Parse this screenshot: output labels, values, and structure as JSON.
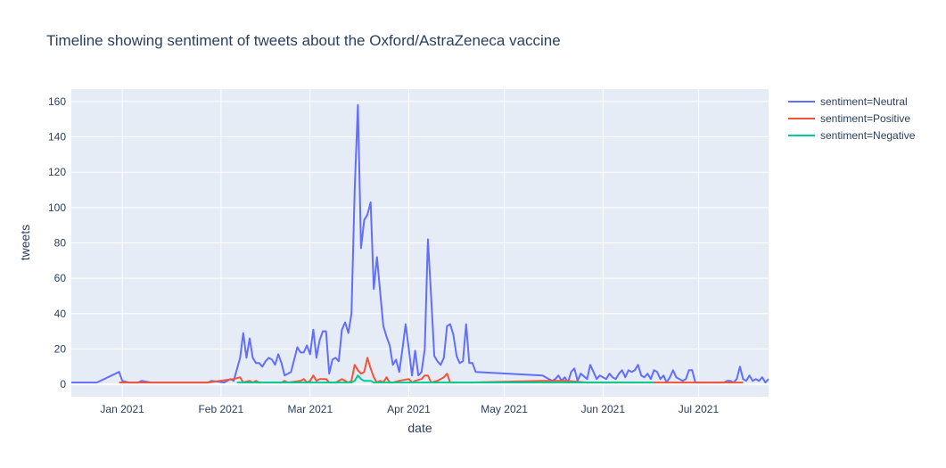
{
  "chart_data": {
    "type": "line",
    "title": "Timeline showing sentiment of tweets about the Oxford/AstraZeneca vaccine",
    "xlabel": "date",
    "ylabel": "tweets",
    "xlim": [
      "2020-12-16",
      "2021-07-23"
    ],
    "ylim": [
      -7,
      167
    ],
    "yticks": [
      0,
      20,
      40,
      60,
      80,
      100,
      120,
      140,
      160
    ],
    "xticks": [
      {
        "date": "2021-01-01",
        "label": "Jan 2021"
      },
      {
        "date": "2021-02-01",
        "label": "Feb 2021"
      },
      {
        "date": "2021-03-01",
        "label": "Mar 2021"
      },
      {
        "date": "2021-04-01",
        "label": "Apr 2021"
      },
      {
        "date": "2021-05-01",
        "label": "May 2021"
      },
      {
        "date": "2021-06-01",
        "label": "Jun 2021"
      },
      {
        "date": "2021-07-01",
        "label": "Jul 2021"
      }
    ],
    "grid": true,
    "legend": "right",
    "colors": {
      "plot_bg": "#E5ECF6",
      "grid": "#ffffff",
      "text": "#2a3f5f",
      "neutral": "#636efa",
      "positive": "#EF553B",
      "negative": "#00cc96"
    },
    "series": [
      {
        "name": "sentiment=Neutral",
        "color": "#636efa",
        "points": [
          [
            "2020-12-16",
            1
          ],
          [
            "2020-12-24",
            1
          ],
          [
            "2020-12-31",
            7
          ],
          [
            "2021-01-01",
            2
          ],
          [
            "2021-01-03",
            1
          ],
          [
            "2021-01-06",
            1
          ],
          [
            "2021-01-07",
            2
          ],
          [
            "2021-01-10",
            1
          ],
          [
            "2021-01-15",
            1
          ],
          [
            "2021-01-20",
            1
          ],
          [
            "2021-01-24",
            1
          ],
          [
            "2021-01-28",
            1
          ],
          [
            "2021-01-29",
            2
          ],
          [
            "2021-02-02",
            1
          ],
          [
            "2021-02-04",
            3
          ],
          [
            "2021-02-05",
            2
          ],
          [
            "2021-02-07",
            15
          ],
          [
            "2021-02-08",
            29
          ],
          [
            "2021-02-09",
            15
          ],
          [
            "2021-02-10",
            26
          ],
          [
            "2021-02-11",
            15
          ],
          [
            "2021-02-12",
            12
          ],
          [
            "2021-02-13",
            12
          ],
          [
            "2021-02-14",
            10
          ],
          [
            "2021-02-15",
            13
          ],
          [
            "2021-02-16",
            15
          ],
          [
            "2021-02-17",
            14
          ],
          [
            "2021-02-18",
            11
          ],
          [
            "2021-02-19",
            17
          ],
          [
            "2021-02-20",
            12
          ],
          [
            "2021-02-21",
            5
          ],
          [
            "2021-02-23",
            7
          ],
          [
            "2021-02-25",
            21
          ],
          [
            "2021-02-26",
            18
          ],
          [
            "2021-02-27",
            18
          ],
          [
            "2021-02-28",
            22
          ],
          [
            "2021-03-01",
            17
          ],
          [
            "2021-03-02",
            31
          ],
          [
            "2021-03-03",
            15
          ],
          [
            "2021-03-04",
            25
          ],
          [
            "2021-03-05",
            30
          ],
          [
            "2021-03-06",
            30
          ],
          [
            "2021-03-07",
            6
          ],
          [
            "2021-03-08",
            14
          ],
          [
            "2021-03-09",
            15
          ],
          [
            "2021-03-10",
            13
          ],
          [
            "2021-03-11",
            31
          ],
          [
            "2021-03-12",
            35
          ],
          [
            "2021-03-13",
            29
          ],
          [
            "2021-03-14",
            40
          ],
          [
            "2021-03-15",
            110
          ],
          [
            "2021-03-16",
            158
          ],
          [
            "2021-03-17",
            77
          ],
          [
            "2021-03-18",
            93
          ],
          [
            "2021-03-19",
            96
          ],
          [
            "2021-03-20",
            103
          ],
          [
            "2021-03-21",
            54
          ],
          [
            "2021-03-22",
            72
          ],
          [
            "2021-03-23",
            52
          ],
          [
            "2021-03-24",
            33
          ],
          [
            "2021-03-25",
            27
          ],
          [
            "2021-03-26",
            22
          ],
          [
            "2021-03-27",
            11
          ],
          [
            "2021-03-28",
            14
          ],
          [
            "2021-03-29",
            7
          ],
          [
            "2021-03-30",
            20
          ],
          [
            "2021-03-31",
            34
          ],
          [
            "2021-04-01",
            20
          ],
          [
            "2021-04-02",
            5
          ],
          [
            "2021-04-03",
            19
          ],
          [
            "2021-04-04",
            5
          ],
          [
            "2021-04-05",
            7
          ],
          [
            "2021-04-06",
            20
          ],
          [
            "2021-04-07",
            82
          ],
          [
            "2021-04-08",
            50
          ],
          [
            "2021-04-09",
            16
          ],
          [
            "2021-04-10",
            13
          ],
          [
            "2021-04-11",
            11
          ],
          [
            "2021-04-12",
            15
          ],
          [
            "2021-04-13",
            33
          ],
          [
            "2021-04-14",
            34
          ],
          [
            "2021-04-15",
            28
          ],
          [
            "2021-04-16",
            16
          ],
          [
            "2021-04-17",
            12
          ],
          [
            "2021-04-18",
            13
          ],
          [
            "2021-04-19",
            34
          ],
          [
            "2021-04-20",
            12
          ],
          [
            "2021-04-21",
            12
          ],
          [
            "2021-04-22",
            7
          ],
          [
            "2021-05-13",
            5
          ],
          [
            "2021-05-14",
            4
          ],
          [
            "2021-05-15",
            3
          ],
          [
            "2021-05-16",
            2
          ],
          [
            "2021-05-17",
            3
          ],
          [
            "2021-05-18",
            5
          ],
          [
            "2021-05-19",
            2
          ],
          [
            "2021-05-20",
            4
          ],
          [
            "2021-05-21",
            1
          ],
          [
            "2021-05-22",
            7
          ],
          [
            "2021-05-23",
            9
          ],
          [
            "2021-05-24",
            2
          ],
          [
            "2021-05-25",
            6
          ],
          [
            "2021-05-27",
            3
          ],
          [
            "2021-05-28",
            11
          ],
          [
            "2021-05-29",
            7
          ],
          [
            "2021-05-30",
            3
          ],
          [
            "2021-05-31",
            5
          ],
          [
            "2021-06-01",
            4
          ],
          [
            "2021-06-02",
            3
          ],
          [
            "2021-06-03",
            6
          ],
          [
            "2021-06-04",
            4
          ],
          [
            "2021-06-05",
            3
          ],
          [
            "2021-06-06",
            6
          ],
          [
            "2021-06-07",
            8
          ],
          [
            "2021-06-08",
            4
          ],
          [
            "2021-06-09",
            8
          ],
          [
            "2021-06-10",
            7
          ],
          [
            "2021-06-11",
            8
          ],
          [
            "2021-06-12",
            11
          ],
          [
            "2021-06-13",
            5
          ],
          [
            "2021-06-14",
            4
          ],
          [
            "2021-06-15",
            6
          ],
          [
            "2021-06-16",
            3
          ],
          [
            "2021-06-17",
            8
          ],
          [
            "2021-06-18",
            7
          ],
          [
            "2021-06-19",
            3
          ],
          [
            "2021-06-20",
            5
          ],
          [
            "2021-06-21",
            1
          ],
          [
            "2021-06-22",
            4
          ],
          [
            "2021-06-23",
            8
          ],
          [
            "2021-06-24",
            4
          ],
          [
            "2021-06-25",
            3
          ],
          [
            "2021-06-26",
            2
          ],
          [
            "2021-06-27",
            3
          ],
          [
            "2021-06-28",
            8
          ],
          [
            "2021-06-29",
            8
          ],
          [
            "2021-06-30",
            1
          ],
          [
            "2021-07-01",
            1
          ],
          [
            "2021-07-05",
            1
          ],
          [
            "2021-07-09",
            1
          ],
          [
            "2021-07-10",
            2
          ],
          [
            "2021-07-11",
            2
          ],
          [
            "2021-07-12",
            1
          ],
          [
            "2021-07-13",
            3
          ],
          [
            "2021-07-14",
            10
          ],
          [
            "2021-07-15",
            3
          ],
          [
            "2021-07-16",
            2
          ],
          [
            "2021-07-17",
            5
          ],
          [
            "2021-07-18",
            2
          ],
          [
            "2021-07-19",
            3
          ],
          [
            "2021-07-20",
            2
          ],
          [
            "2021-07-21",
            4
          ],
          [
            "2021-07-22",
            1
          ],
          [
            "2021-07-23",
            3
          ]
        ]
      },
      {
        "name": "sentiment=Positive",
        "color": "#EF553B",
        "points": [
          [
            "2020-12-31",
            1
          ],
          [
            "2021-01-10",
            1
          ],
          [
            "2021-01-20",
            1
          ],
          [
            "2021-01-28",
            1
          ],
          [
            "2021-02-05",
            3
          ],
          [
            "2021-02-07",
            4
          ],
          [
            "2021-02-08",
            1
          ],
          [
            "2021-02-10",
            2
          ],
          [
            "2021-02-11",
            1
          ],
          [
            "2021-02-12",
            2
          ],
          [
            "2021-02-13",
            1
          ],
          [
            "2021-02-20",
            1
          ],
          [
            "2021-02-21",
            2
          ],
          [
            "2021-02-22",
            1
          ],
          [
            "2021-02-26",
            2
          ],
          [
            "2021-02-27",
            3
          ],
          [
            "2021-02-28",
            1
          ],
          [
            "2021-03-01",
            2
          ],
          [
            "2021-03-02",
            5
          ],
          [
            "2021-03-03",
            2
          ],
          [
            "2021-03-04",
            3
          ],
          [
            "2021-03-05",
            3
          ],
          [
            "2021-03-06",
            3
          ],
          [
            "2021-03-07",
            1
          ],
          [
            "2021-03-08",
            1
          ],
          [
            "2021-03-09",
            1
          ],
          [
            "2021-03-10",
            2
          ],
          [
            "2021-03-11",
            3
          ],
          [
            "2021-03-12",
            2
          ],
          [
            "2021-03-13",
            1
          ],
          [
            "2021-03-14",
            2
          ],
          [
            "2021-03-15",
            11
          ],
          [
            "2021-03-16",
            8
          ],
          [
            "2021-03-17",
            6
          ],
          [
            "2021-03-18",
            7
          ],
          [
            "2021-03-19",
            15
          ],
          [
            "2021-03-20",
            9
          ],
          [
            "2021-03-21",
            4
          ],
          [
            "2021-03-22",
            1
          ],
          [
            "2021-03-23",
            2
          ],
          [
            "2021-03-24",
            1
          ],
          [
            "2021-03-25",
            4
          ],
          [
            "2021-03-26",
            1
          ],
          [
            "2021-03-27",
            1
          ],
          [
            "2021-03-29",
            2
          ],
          [
            "2021-04-01",
            3
          ],
          [
            "2021-04-02",
            1
          ],
          [
            "2021-04-03",
            2
          ],
          [
            "2021-04-05",
            3
          ],
          [
            "2021-04-06",
            5
          ],
          [
            "2021-04-07",
            5
          ],
          [
            "2021-04-08",
            1
          ],
          [
            "2021-04-10",
            2
          ],
          [
            "2021-04-12",
            4
          ],
          [
            "2021-04-13",
            6
          ],
          [
            "2021-04-14",
            1
          ],
          [
            "2021-04-20",
            1
          ],
          [
            "2021-05-13",
            2
          ],
          [
            "2021-05-20",
            2
          ],
          [
            "2021-05-27",
            1
          ],
          [
            "2021-06-03",
            1
          ],
          [
            "2021-06-08",
            1
          ],
          [
            "2021-06-12",
            1
          ],
          [
            "2021-06-18",
            1
          ],
          [
            "2021-06-22",
            1
          ],
          [
            "2021-07-01",
            1
          ],
          [
            "2021-07-15",
            1
          ]
        ]
      },
      {
        "name": "sentiment=Negative",
        "color": "#00cc96",
        "points": [
          [
            "2021-02-06",
            1
          ],
          [
            "2021-02-12",
            1
          ],
          [
            "2021-02-18",
            1
          ],
          [
            "2021-02-22",
            1
          ],
          [
            "2021-03-02",
            1
          ],
          [
            "2021-03-08",
            1
          ],
          [
            "2021-03-14",
            1
          ],
          [
            "2021-03-15",
            2
          ],
          [
            "2021-03-16",
            5
          ],
          [
            "2021-03-17",
            3
          ],
          [
            "2021-03-18",
            2
          ],
          [
            "2021-03-19",
            2
          ],
          [
            "2021-03-20",
            2
          ],
          [
            "2021-03-21",
            1
          ],
          [
            "2021-03-25",
            1
          ],
          [
            "2021-03-30",
            1
          ],
          [
            "2021-04-06",
            1
          ],
          [
            "2021-04-12",
            1
          ],
          [
            "2021-04-22",
            1
          ],
          [
            "2021-05-18",
            1
          ],
          [
            "2021-05-25",
            1
          ],
          [
            "2021-06-01",
            1
          ],
          [
            "2021-06-10",
            1
          ],
          [
            "2021-06-17",
            1
          ]
        ]
      }
    ]
  }
}
